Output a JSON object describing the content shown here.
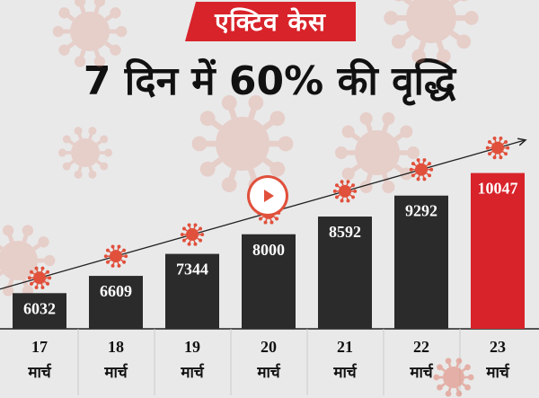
{
  "header": {
    "badge_text": "एक्टिव केस",
    "headline": "7 दिन में 60% की वृद्धि"
  },
  "colors": {
    "bar": "#2b2b2b",
    "bar_highlight": "#d8232a",
    "accent": "#e0503b",
    "background": "#e9e9e9"
  },
  "icons": {
    "virus": "coronavirus-icon",
    "play": "play-icon"
  },
  "chart_data": {
    "type": "bar",
    "categories": [
      "17 मार्च",
      "18 मार्च",
      "19 मार्च",
      "20 मार्च",
      "21 मार्च",
      "22 मार्च",
      "23 मार्च"
    ],
    "day_labels": [
      "17",
      "18",
      "19",
      "20",
      "21",
      "22",
      "23"
    ],
    "month_label": "मार्च",
    "values": [
      6032,
      6609,
      7344,
      8000,
      8592,
      9292,
      10047
    ],
    "value_labels": [
      "6032",
      "6609",
      "7344",
      "8000",
      "8592",
      "9292",
      "10047"
    ],
    "highlight_index": 6,
    "title": "7 दिन में 60% की वृद्धि",
    "xlabel": "",
    "ylabel": "",
    "grid": false,
    "trend_arrow": true
  }
}
